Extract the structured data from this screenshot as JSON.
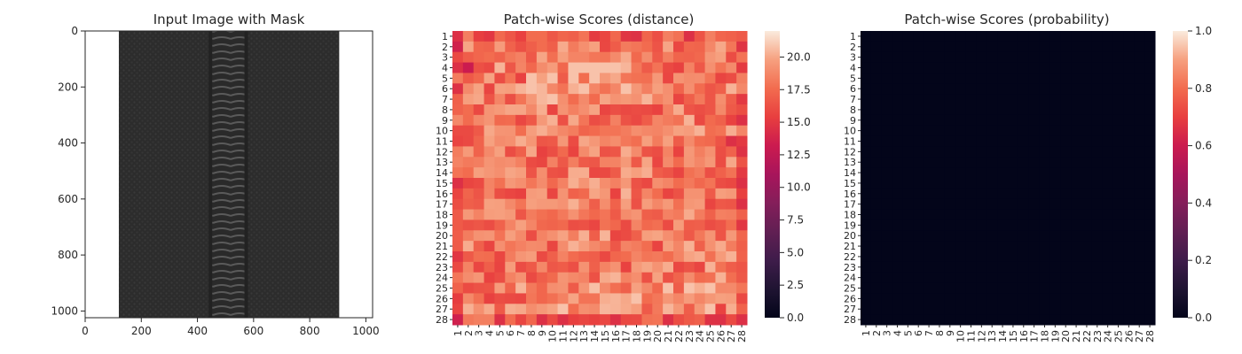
{
  "figure": {
    "background": "#ffffff"
  },
  "chart_data": [
    {
      "type": "image",
      "title": "Input Image with Mask",
      "xlabel": "",
      "ylabel": "",
      "xlim": [
        0,
        1024
      ],
      "ylim": [
        1024,
        0
      ],
      "x_ticks": [
        0,
        200,
        400,
        600,
        800,
        1000
      ],
      "y_ticks": [
        0,
        200,
        400,
        600,
        800,
        1000
      ],
      "content": {
        "object": "zipper",
        "fabric_extent_x": [
          120,
          905
        ],
        "teeth_extent_x": [
          440,
          580
        ],
        "fabric_color": "#2c2c2c",
        "teeth_color": "#3a3a3a",
        "background": "#ffffff"
      }
    },
    {
      "type": "heatmap",
      "title": "Patch-wise Scores (distance)",
      "xlabel": "",
      "ylabel": "",
      "rows": [
        "1",
        "2",
        "3",
        "4",
        "5",
        "6",
        "7",
        "8",
        "9",
        "10",
        "11",
        "12",
        "13",
        "14",
        "15",
        "16",
        "17",
        "18",
        "19",
        "20",
        "21",
        "22",
        "23",
        "24",
        "25",
        "26",
        "27",
        "28"
      ],
      "cols": [
        "1",
        "2",
        "3",
        "4",
        "5",
        "6",
        "7",
        "8",
        "9",
        "10",
        "11",
        "12",
        "13",
        "14",
        "15",
        "16",
        "17",
        "18",
        "19",
        "20",
        "21",
        "22",
        "23",
        "24",
        "25",
        "26",
        "27",
        "28"
      ],
      "value_range": [
        0,
        22
      ],
      "typical_range": [
        14.5,
        20.8
      ],
      "notable_cells": [
        {
          "row": "2",
          "col": "1",
          "value": 13.6
        },
        {
          "row": "4",
          "col": "2",
          "value": 13.2
        },
        {
          "row": "28",
          "col": "1",
          "value": 13.5
        },
        {
          "row": "1",
          "col": "17",
          "value": 14.8
        },
        {
          "row": "1",
          "col": "18",
          "value": 14.6
        },
        {
          "row": "11",
          "col": "27",
          "value": 14.5
        },
        {
          "row": "12",
          "col": "28",
          "value": 14.6
        }
      ],
      "colorbar": {
        "ticks": [
          "0.0",
          "2.5",
          "5.0",
          "7.5",
          "10.0",
          "12.5",
          "15.0",
          "17.5",
          "20.0"
        ],
        "min": 0,
        "max": 22,
        "colormap": "rocket"
      }
    },
    {
      "type": "heatmap",
      "title": "Patch-wise Scores (probability)",
      "xlabel": "",
      "ylabel": "",
      "rows": [
        "1",
        "2",
        "3",
        "4",
        "5",
        "6",
        "7",
        "8",
        "9",
        "10",
        "11",
        "12",
        "13",
        "14",
        "15",
        "16",
        "17",
        "18",
        "19",
        "20",
        "21",
        "22",
        "23",
        "24",
        "25",
        "26",
        "27",
        "28"
      ],
      "cols": [
        "1",
        "2",
        "3",
        "4",
        "5",
        "6",
        "7",
        "8",
        "9",
        "10",
        "11",
        "12",
        "13",
        "14",
        "15",
        "16",
        "17",
        "18",
        "19",
        "20",
        "21",
        "22",
        "23",
        "24",
        "25",
        "26",
        "27",
        "28"
      ],
      "all_cells_value": 0.0,
      "value_range": [
        0,
        1
      ],
      "colorbar": {
        "ticks": [
          "0.0",
          "0.2",
          "0.4",
          "0.6",
          "0.8",
          "1.0"
        ],
        "min": 0,
        "max": 1,
        "colormap": "rocket"
      }
    }
  ]
}
